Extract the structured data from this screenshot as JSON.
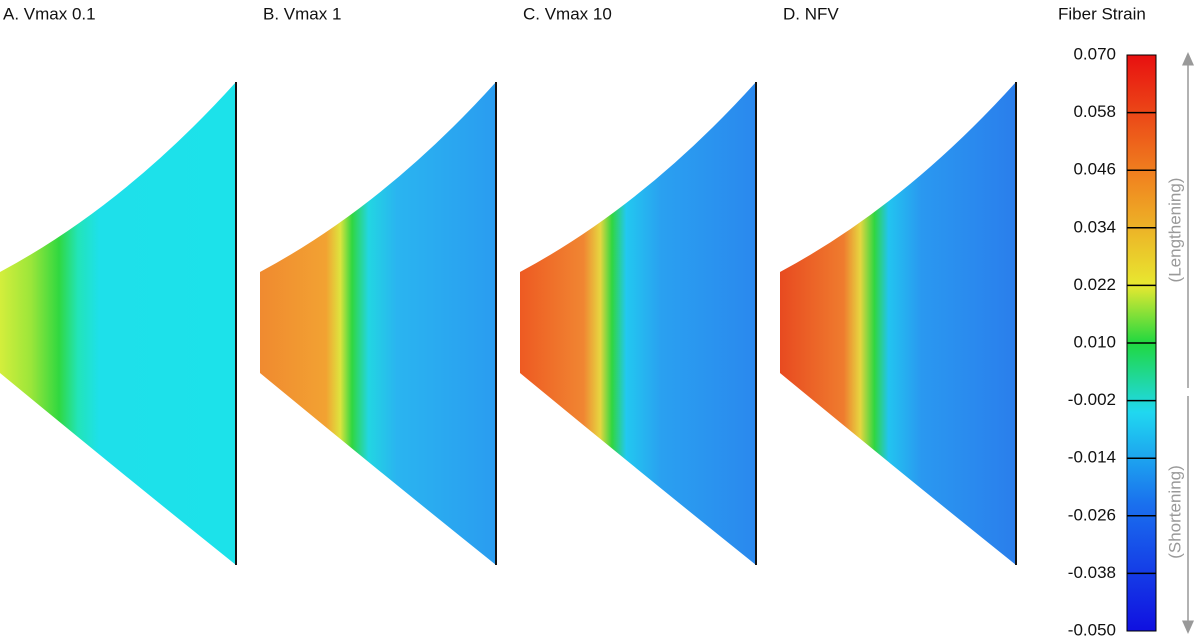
{
  "panels": [
    {
      "title": "A. Vmax 0.1"
    },
    {
      "title": "B. Vmax 1"
    },
    {
      "title": "C. Vmax 10"
    },
    {
      "title": "D. NFV"
    }
  ],
  "colorbar": {
    "title": "Fiber Strain",
    "ticks": [
      {
        "value": 0.07,
        "label": "0.070"
      },
      {
        "value": 0.058,
        "label": "0.058"
      },
      {
        "value": 0.046,
        "label": "0.046"
      },
      {
        "value": 0.034,
        "label": "0.034"
      },
      {
        "value": 0.022,
        "label": "0.022"
      },
      {
        "value": 0.01,
        "label": "0.010"
      },
      {
        "value": -0.002,
        "label": "-0.002"
      },
      {
        "value": -0.014,
        "label": "-0.014"
      },
      {
        "value": -0.026,
        "label": "-0.026"
      },
      {
        "value": -0.038,
        "label": "-0.038"
      },
      {
        "value": -0.05,
        "label": "-0.050"
      }
    ],
    "upper_note": "(Lengthening)",
    "lower_note": "(Shortening)"
  }
}
